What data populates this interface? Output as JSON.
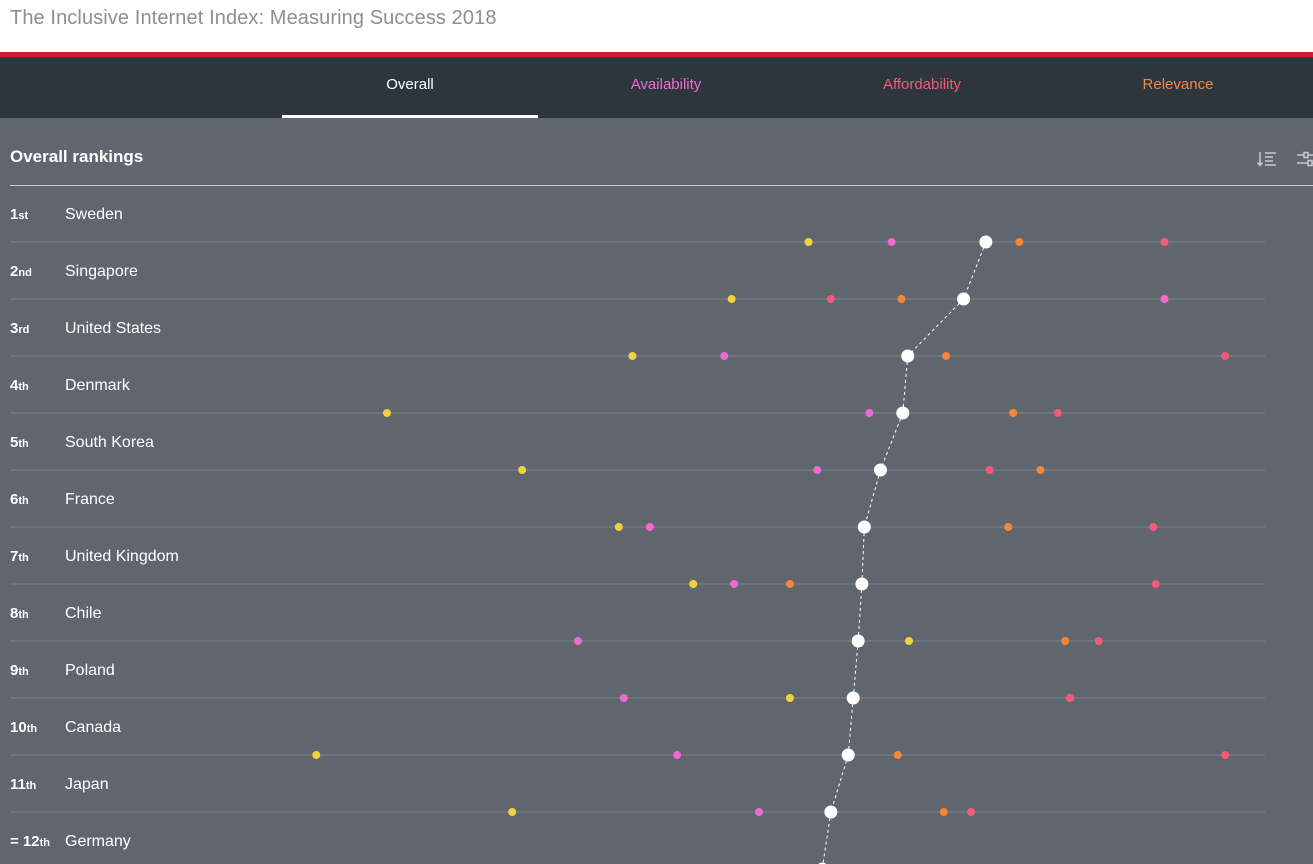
{
  "header": {
    "title": "The Inclusive Internet Index: Measuring Success 2018"
  },
  "tabs": [
    {
      "label": "Overall",
      "color": "#ffffff",
      "active": true
    },
    {
      "label": "Availability",
      "color": "#ef6ad1",
      "active": false
    },
    {
      "label": "Affordability",
      "color": "#f25a78",
      "active": false
    },
    {
      "label": "Relevance",
      "color": "#f98536",
      "active": false
    }
  ],
  "section": {
    "title": "Overall rankings"
  },
  "toolbar": {
    "sort_icon": "sort-list-icon",
    "filter_icon": "sliders-icon"
  },
  "colors": {
    "overall": "#ffffff",
    "availability": "#ef6ad1",
    "affordability": "#f25a78",
    "relevance": "#f98536",
    "readiness": "#f2d23b"
  },
  "chart_data": {
    "type": "scatter",
    "title": "Overall rankings",
    "series_keys": [
      "readiness",
      "availability",
      "overall",
      "relevance",
      "affordability"
    ],
    "categories": [
      {
        "rank_prefix": "",
        "rank": "1",
        "suffix": "st",
        "country": "Sweden",
        "values": {
          "readiness": 64.4,
          "availability": 71.1,
          "overall": 78.7,
          "relevance": 81.4,
          "affordability": 93.1
        }
      },
      {
        "rank_prefix": "",
        "rank": "2",
        "suffix": "nd",
        "country": "Singapore",
        "values": {
          "readiness": 58.2,
          "availability": 93.1,
          "overall": 76.9,
          "relevance": 71.9,
          "affordability": 66.2
        }
      },
      {
        "rank_prefix": "",
        "rank": "3",
        "suffix": "rd",
        "country": "United States",
        "values": {
          "readiness": 50.2,
          "availability": 57.6,
          "overall": 72.4,
          "relevance": 75.5,
          "affordability": 98.0
        }
      },
      {
        "rank_prefix": "",
        "rank": "4",
        "suffix": "th",
        "country": "Denmark",
        "values": {
          "readiness": 30.4,
          "availability": 69.3,
          "overall": 72.0,
          "relevance": 80.9,
          "affordability": 84.5
        }
      },
      {
        "rank_prefix": "",
        "rank": "5",
        "suffix": "th",
        "country": "South Korea",
        "values": {
          "readiness": 41.3,
          "availability": 65.1,
          "overall": 70.2,
          "relevance": 83.1,
          "affordability": 79.0
        }
      },
      {
        "rank_prefix": "",
        "rank": "6",
        "suffix": "th",
        "country": "France",
        "values": {
          "readiness": 49.1,
          "availability": 51.6,
          "overall": 68.9,
          "relevance": 80.5,
          "affordability": 92.2
        }
      },
      {
        "rank_prefix": "",
        "rank": "7",
        "suffix": "th",
        "country": "United Kingdom",
        "values": {
          "readiness": 55.1,
          "availability": 58.4,
          "overall": 68.7,
          "relevance": 62.9,
          "affordability": 92.4
        }
      },
      {
        "rank_prefix": "",
        "rank": "8",
        "suffix": "th",
        "country": "Chile",
        "values": {
          "readiness": 72.5,
          "availability": 45.8,
          "overall": 68.4,
          "relevance": 85.1,
          "affordability": 87.8
        }
      },
      {
        "rank_prefix": "",
        "rank": "9",
        "suffix": "th",
        "country": "Poland",
        "values": {
          "readiness": 62.9,
          "availability": 49.5,
          "overall": 68.0,
          "relevance": 85.5,
          "affordability": 85.5
        }
      },
      {
        "rank_prefix": "",
        "rank": "10",
        "suffix": "th",
        "country": "Canada",
        "values": {
          "readiness": 24.7,
          "availability": 53.8,
          "overall": 67.6,
          "relevance": 71.6,
          "affordability": 98.0
        }
      },
      {
        "rank_prefix": "",
        "rank": "11",
        "suffix": "th",
        "country": "Japan",
        "values": {
          "readiness": 40.5,
          "availability": 60.4,
          "overall": 66.2,
          "relevance": 75.3,
          "affordability": 77.5
        }
      },
      {
        "rank_prefix": "= ",
        "rank": "12",
        "suffix": "th",
        "country": "Germany",
        "values": {
          "overall": 65.5
        }
      }
    ],
    "xlim": [
      0,
      100
    ],
    "grid": false,
    "legend": "none"
  }
}
